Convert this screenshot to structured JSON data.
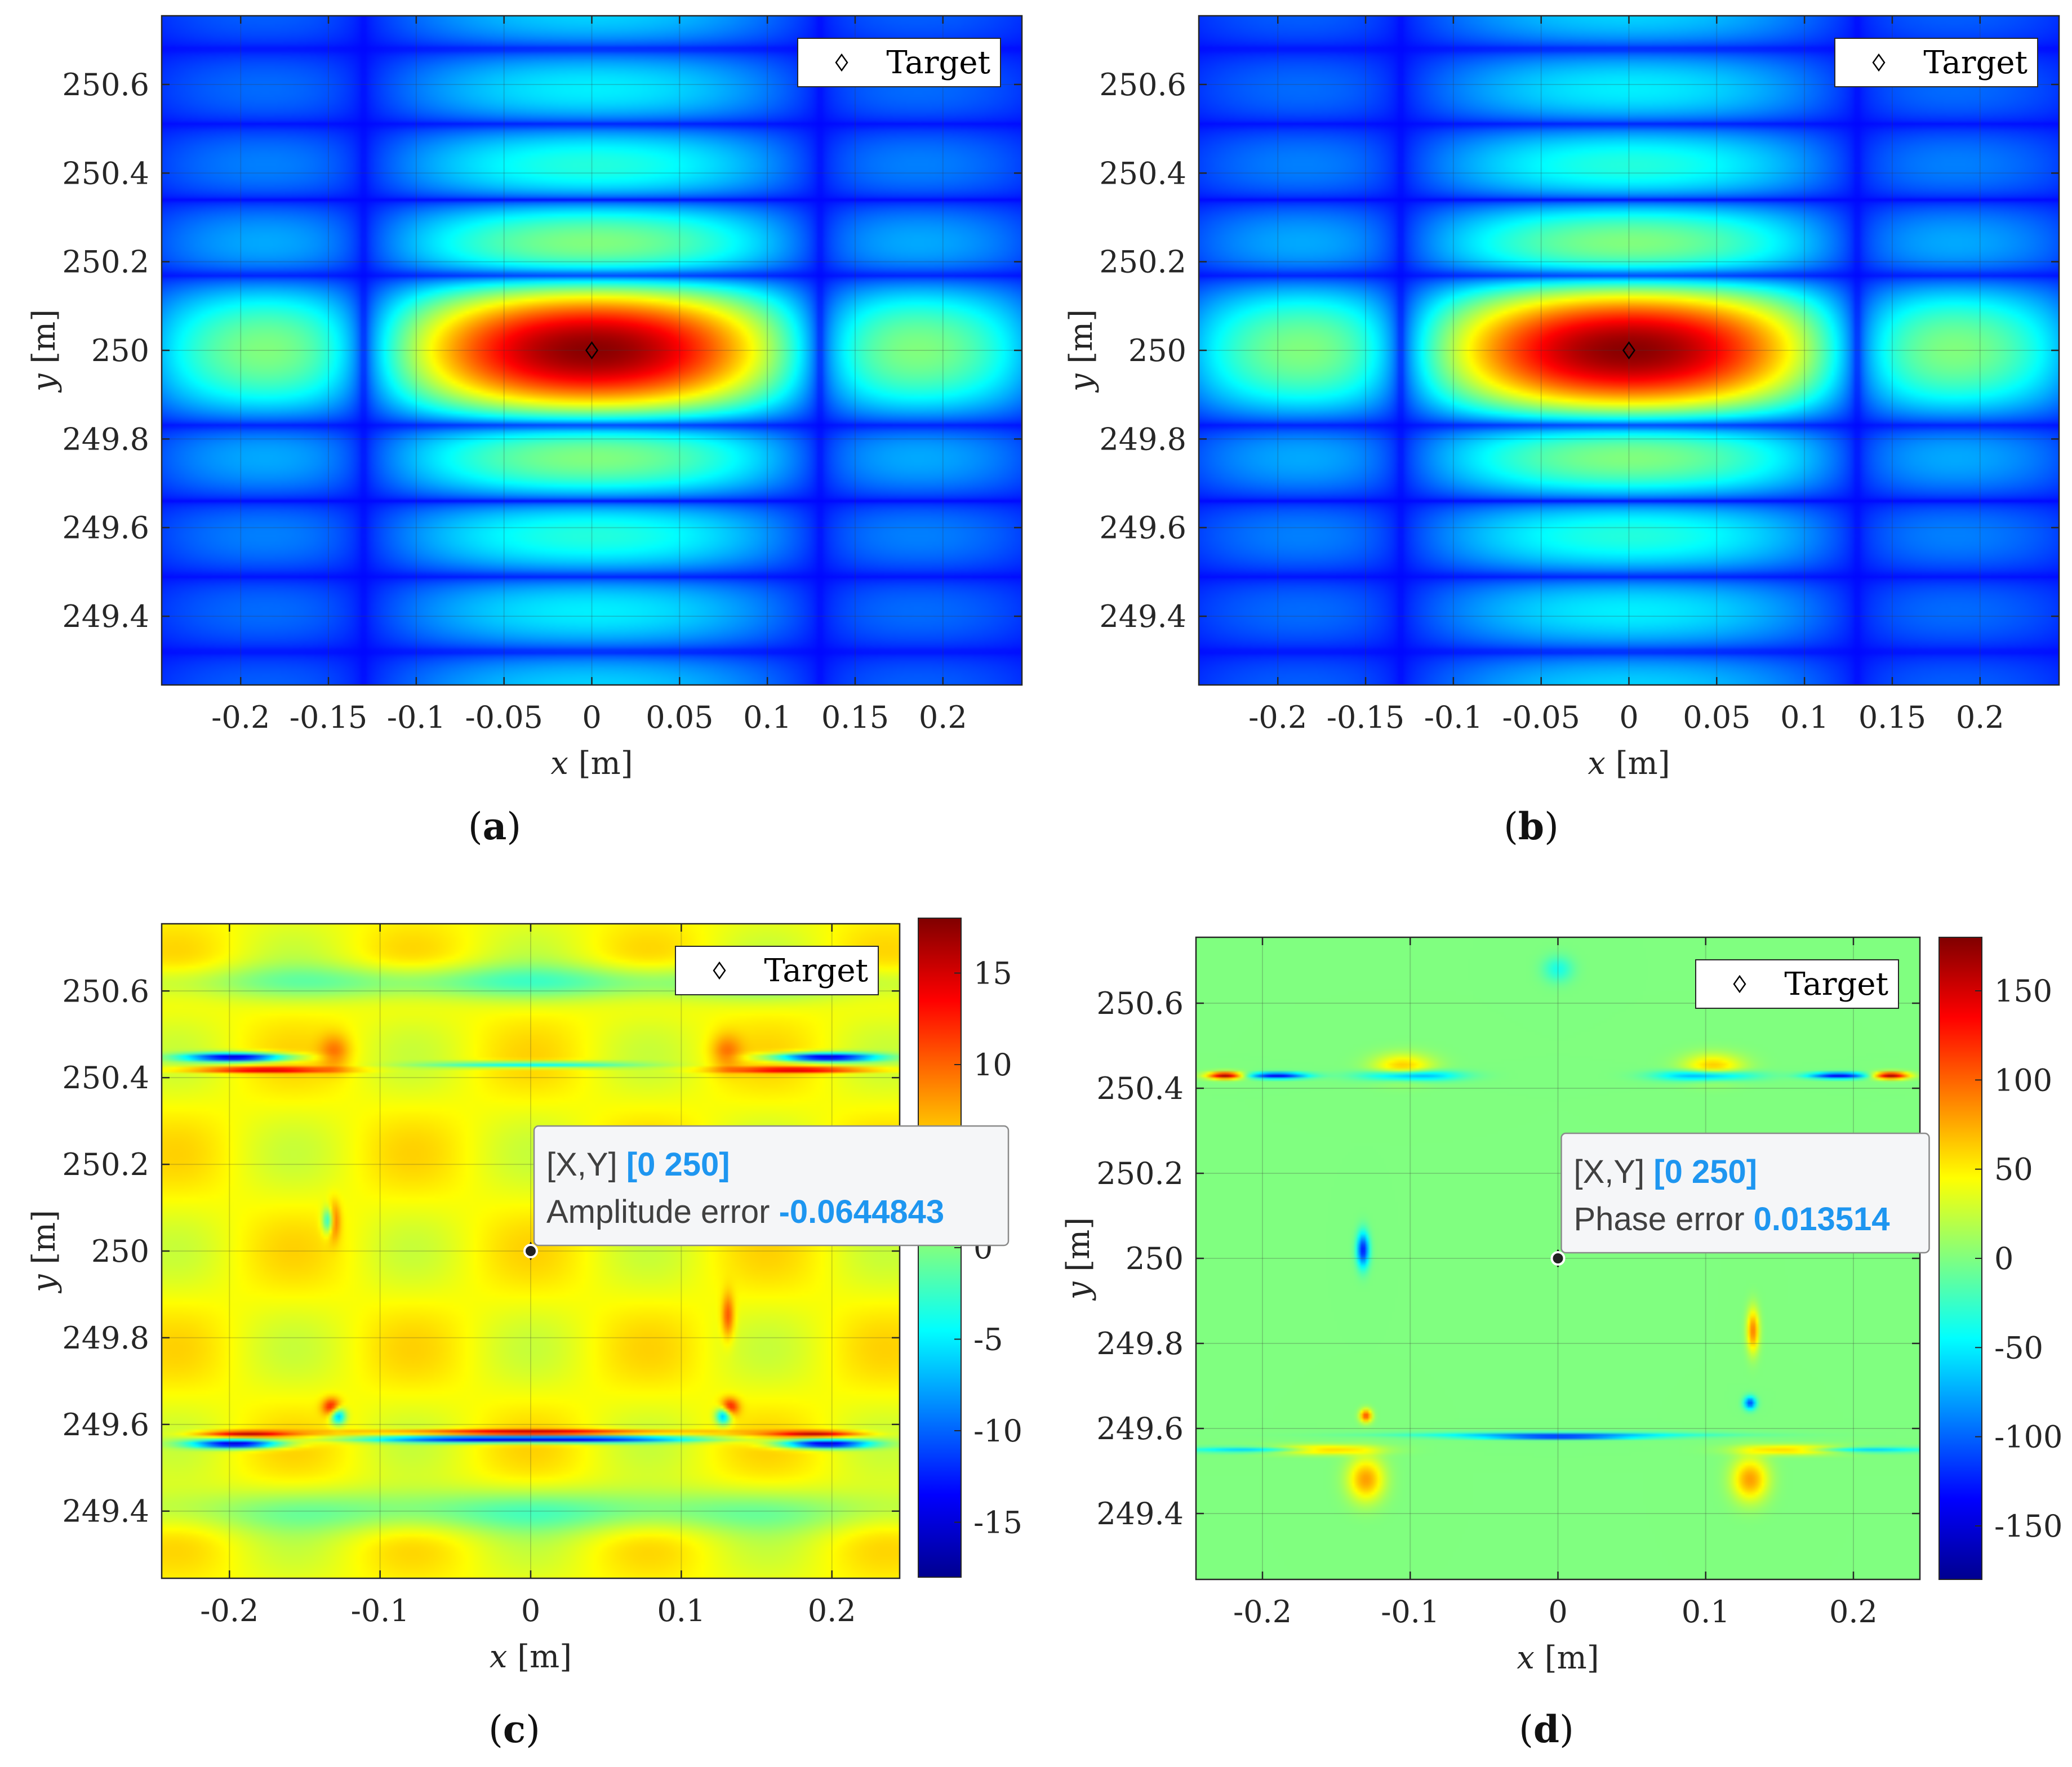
{
  "figure": {
    "panel_labels": [
      "(a)",
      "(b)",
      "(c)",
      "(d)"
    ]
  },
  "colors": {
    "axis": "#262626",
    "grid": "#3a3a3a",
    "datatip_bg": "#f5f6f8",
    "datatip_border": "#8a8a8a",
    "datatip_label": "#404040",
    "datatip_value": "#1e96f0",
    "jet": [
      "#00008f",
      "#0000ff",
      "#0080ff",
      "#00ffff",
      "#80ff80",
      "#ffff00",
      "#ff8000",
      "#ff0000",
      "#800000"
    ]
  },
  "chart_data": [
    {
      "id": "a",
      "type": "heatmap",
      "panel_label": "(a)",
      "title": "",
      "xlabel_var": "x",
      "xlabel_unit": "[m]",
      "ylabel_var": "y",
      "ylabel_unit": "[m]",
      "xlim": [
        -0.245,
        0.245
      ],
      "ylim": [
        249.245,
        250.755
      ],
      "xticks": [
        -0.2,
        -0.15,
        -0.1,
        -0.05,
        0,
        0.05,
        0.1,
        0.15,
        0.2
      ],
      "xtick_labels": [
        "-0.2",
        "-0.15",
        "-0.1",
        "-0.05",
        "0",
        "0.05",
        "0.1",
        "0.15",
        "0.2"
      ],
      "yticks": [
        249.4,
        249.6,
        249.8,
        250,
        250.2,
        250.4,
        250.6
      ],
      "ytick_labels": [
        "249.4",
        "249.6",
        "249.8",
        "250",
        "250.2",
        "250.4",
        "250.6"
      ],
      "field": "psf_magnitude",
      "peak": [
        0,
        250
      ],
      "mainlobe_width_m": [
        0.13,
        0.17
      ],
      "target": {
        "x": 0,
        "y": 250,
        "marker": "diamond"
      },
      "legend": {
        "label": "Target",
        "location": "top-right"
      },
      "grid": true,
      "colorbar": null,
      "datatip": null
    },
    {
      "id": "b",
      "type": "heatmap",
      "panel_label": "(b)",
      "title": "",
      "xlabel_var": "x",
      "xlabel_unit": "[m]",
      "ylabel_var": "y",
      "ylabel_unit": "[m]",
      "xlim": [
        -0.245,
        0.245
      ],
      "ylim": [
        249.245,
        250.755
      ],
      "xticks": [
        -0.2,
        -0.15,
        -0.1,
        -0.05,
        0,
        0.05,
        0.1,
        0.15,
        0.2
      ],
      "xtick_labels": [
        "-0.2",
        "-0.15",
        "-0.1",
        "-0.05",
        "0",
        "0.05",
        "0.1",
        "0.15",
        "0.2"
      ],
      "yticks": [
        249.4,
        249.6,
        249.8,
        250,
        250.2,
        250.4,
        250.6
      ],
      "ytick_labels": [
        "249.4",
        "249.6",
        "249.8",
        "250",
        "250.2",
        "250.4",
        "250.6"
      ],
      "field": "psf_magnitude",
      "peak": [
        0,
        250
      ],
      "mainlobe_width_m": [
        0.13,
        0.17
      ],
      "target": {
        "x": 0,
        "y": 250,
        "marker": "diamond"
      },
      "legend": {
        "label": "Target",
        "location": "top-right"
      },
      "grid": true,
      "colorbar": null,
      "datatip": null
    },
    {
      "id": "c",
      "type": "heatmap",
      "panel_label": "(c)",
      "title": "",
      "xlabel_var": "x",
      "xlabel_unit": "[m]",
      "ylabel_var": "y",
      "ylabel_unit": "[m]",
      "xlim": [
        -0.245,
        0.245
      ],
      "ylim": [
        249.245,
        250.755
      ],
      "xticks": [
        -0.2,
        -0.1,
        0,
        0.1,
        0.2
      ],
      "xtick_labels": [
        "-0.2",
        "-0.1",
        "0",
        "0.1",
        "0.2"
      ],
      "yticks": [
        249.4,
        249.6,
        249.8,
        250,
        250.2,
        250.4,
        250.6
      ],
      "ytick_labels": [
        "249.4",
        "249.6",
        "249.8",
        "250",
        "250.2",
        "250.4",
        "250.6"
      ],
      "field": "amplitude_error",
      "target": {
        "x": 0,
        "y": 250,
        "marker": "diamond"
      },
      "legend": {
        "label": "Target",
        "location": "top-right"
      },
      "grid": true,
      "colorbar": {
        "range": [
          -18,
          18
        ],
        "ticks": [
          -15,
          -10,
          -5,
          0,
          5,
          10,
          15
        ],
        "tick_labels": [
          "-15",
          "-10",
          "-5",
          "0",
          "5",
          "10",
          "15"
        ]
      },
      "datatip": {
        "x": 0,
        "y": 250,
        "xy_label": "[X,Y]",
        "xy_value": "[0 250]",
        "value_label": "Amplitude error",
        "value": "-0.0644843"
      }
    },
    {
      "id": "d",
      "type": "heatmap",
      "panel_label": "(d)",
      "title": "",
      "xlabel_var": "x",
      "xlabel_unit": "[m]",
      "ylabel_var": "y",
      "ylabel_unit": "[m]",
      "xlim": [
        -0.245,
        0.245
      ],
      "ylim": [
        249.245,
        250.755
      ],
      "xticks": [
        -0.2,
        -0.1,
        0,
        0.1,
        0.2
      ],
      "xtick_labels": [
        "-0.2",
        "-0.1",
        "0",
        "0.1",
        "0.2"
      ],
      "yticks": [
        249.4,
        249.6,
        249.8,
        250,
        250.2,
        250.4,
        250.6
      ],
      "ytick_labels": [
        "249.4",
        "249.6",
        "249.8",
        "250",
        "250.2",
        "250.4",
        "250.6"
      ],
      "field": "phase_error",
      "target": {
        "x": 0,
        "y": 250,
        "marker": "diamond"
      },
      "legend": {
        "label": "Target",
        "location": "top-right"
      },
      "grid": true,
      "colorbar": {
        "range": [
          -180,
          180
        ],
        "ticks": [
          -150,
          -100,
          -50,
          0,
          50,
          100,
          150
        ],
        "tick_labels": [
          "-150",
          "-100",
          "-50",
          "0",
          "50",
          "100",
          "150"
        ]
      },
      "datatip": {
        "x": 0,
        "y": 250,
        "xy_label": "[X,Y]",
        "xy_value": "[0 250]",
        "value_label": "Phase error",
        "value": "0.013514"
      }
    }
  ]
}
